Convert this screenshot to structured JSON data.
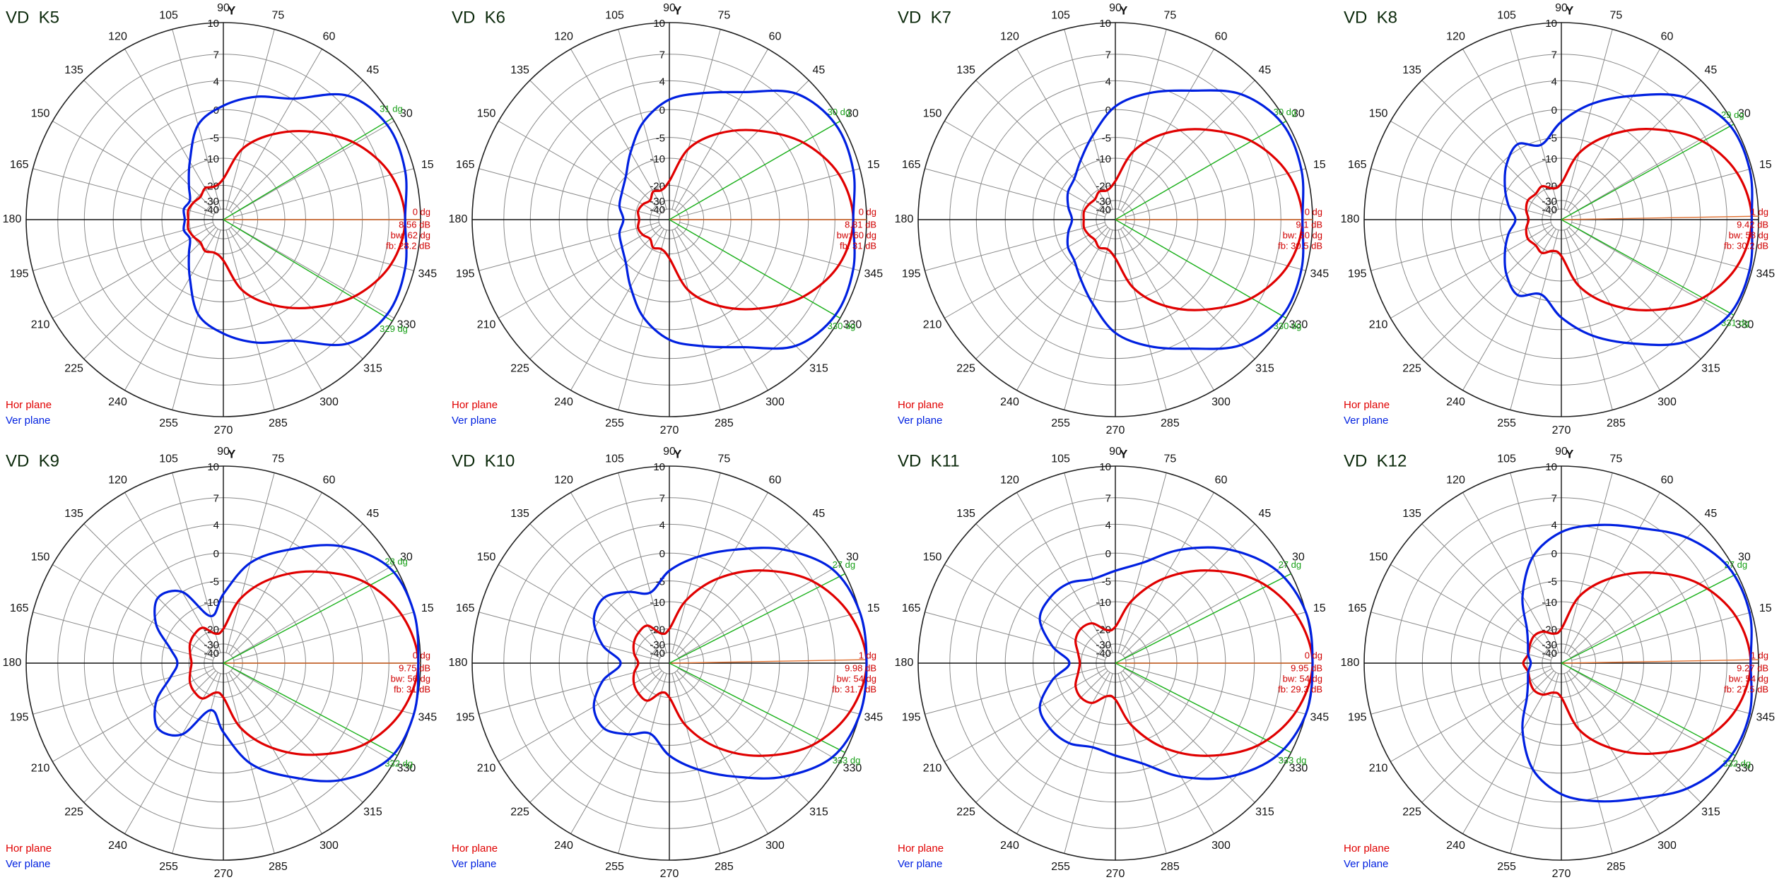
{
  "chart_data": [
    {
      "type": "polar",
      "title": "VD  K5",
      "axis_label": "Y",
      "radial_scale": "arrl",
      "rlim": [
        -40,
        10
      ],
      "rticks": [
        10,
        7,
        4,
        0,
        -5,
        -10,
        -20,
        -30,
        -40
      ],
      "thetaticks": [
        15,
        30,
        45,
        60,
        75,
        90,
        105,
        120,
        135,
        150,
        165,
        180,
        195,
        210,
        225,
        240,
        255,
        270,
        285,
        300,
        315,
        330,
        345
      ],
      "theta": [
        0,
        15,
        30,
        45,
        60,
        75,
        90,
        105,
        120,
        135,
        150,
        165,
        180,
        195,
        210,
        225,
        240,
        255,
        270,
        285,
        300,
        315,
        330,
        345
      ],
      "series": [
        {
          "name": "Hor plane",
          "color": "#e00000",
          "values": [
            8.6,
            7.8,
            5.6,
            2.1,
            -1.9,
            -7,
            -17,
            -20,
            -19,
            -21,
            -20,
            -19,
            -19.6,
            -19,
            -20,
            -21,
            -19,
            -20,
            -17,
            -7,
            -1.9,
            2.1,
            5.6,
            7.8
          ]
        },
        {
          "name": "Ver plane",
          "color": "#0020e0",
          "values": [
            8.6,
            9.2,
            9.3,
            8,
            4.1,
            2.5,
            0.6,
            -2,
            -8.5,
            -14,
            -18,
            -17,
            -18,
            -17,
            -18,
            -14,
            -8.5,
            -2,
            0.6,
            2.5,
            4.1,
            8,
            9.3,
            9.2
          ]
        }
      ],
      "beam_lines": [
        {
          "value": 31,
          "label": "31 dg"
        },
        {
          "value": 329,
          "label": "329 dg"
        }
      ],
      "max_dir": {
        "value": 0,
        "label": "0 dg"
      },
      "info": [
        "8.56 dB",
        "bw: 62 dg",
        "fb: 28.2 dB"
      ]
    },
    {
      "type": "polar",
      "title": "VD  K6",
      "axis_label": "Y",
      "radial_scale": "arrl",
      "rlim": [
        -40,
        10
      ],
      "rticks": [
        10,
        7,
        4,
        0,
        -5,
        -10,
        -20,
        -30,
        -40
      ],
      "thetaticks": [
        15,
        30,
        45,
        60,
        75,
        90,
        105,
        120,
        135,
        150,
        165,
        180,
        195,
        210,
        225,
        240,
        255,
        270,
        285,
        300,
        315,
        330,
        345
      ],
      "theta": [
        0,
        15,
        30,
        45,
        60,
        75,
        90,
        105,
        120,
        135,
        150,
        165,
        180,
        195,
        210,
        225,
        240,
        255,
        270,
        285,
        300,
        315,
        330,
        345
      ],
      "series": [
        {
          "name": "Hor plane",
          "color": "#e00000",
          "values": [
            8.8,
            8,
            5.8,
            2.3,
            -1.7,
            -7,
            -18,
            -22,
            -21,
            -24,
            -22,
            -21,
            -22.2,
            -21,
            -22,
            -24,
            -21,
            -22,
            -18,
            -7,
            -1.7,
            2.3,
            5.8,
            8
          ]
        },
        {
          "name": "Ver plane",
          "color": "#0020e0",
          "values": [
            8.8,
            9.4,
            9.5,
            8.3,
            5,
            3,
            1.5,
            -1.5,
            -6,
            -10,
            -12,
            -13,
            -15,
            -13,
            -12,
            -10,
            -6,
            -1.5,
            1.5,
            3,
            5,
            8.3,
            9.5,
            9.4
          ]
        }
      ],
      "beam_lines": [
        {
          "value": 30,
          "label": "30 dg"
        },
        {
          "value": 330,
          "label": "330 dg"
        }
      ],
      "max_dir": {
        "value": 0,
        "label": "0 dg"
      },
      "info": [
        "8.81 dB",
        "bw: 60 dg",
        "fb: 31 dB"
      ]
    },
    {
      "type": "polar",
      "title": "VD  K7",
      "axis_label": "Y",
      "radial_scale": "arrl",
      "rlim": [
        -40,
        10
      ],
      "rticks": [
        10,
        7,
        4,
        0,
        -5,
        -10,
        -20,
        -30,
        -40
      ],
      "thetaticks": [
        15,
        30,
        45,
        60,
        75,
        90,
        105,
        120,
        135,
        150,
        165,
        180,
        195,
        210,
        225,
        240,
        255,
        270,
        285,
        300,
        315,
        330,
        345
      ],
      "theta": [
        0,
        15,
        30,
        45,
        60,
        75,
        90,
        105,
        120,
        135,
        150,
        165,
        180,
        195,
        210,
        225,
        240,
        255,
        270,
        285,
        300,
        315,
        330,
        345
      ],
      "series": [
        {
          "name": "Hor plane",
          "color": "#e00000",
          "values": [
            9.1,
            8.3,
            6.1,
            2.5,
            -1.7,
            -7.5,
            -18,
            -22,
            -21,
            -23,
            -22,
            -21,
            -21.4,
            -21,
            -22,
            -23,
            -21,
            -22,
            -18,
            -7.5,
            -1.7,
            2.5,
            6.1,
            8.3
          ]
        },
        {
          "name": "Ver plane",
          "color": "#0020e0",
          "values": [
            9.1,
            9.6,
            9.6,
            8.2,
            5.2,
            3,
            0.5,
            -4,
            -8,
            -11,
            -12,
            -14,
            -16,
            -14,
            -12,
            -11,
            -8,
            -4,
            0.5,
            3,
            5.2,
            8.2,
            9.6,
            9.6
          ]
        }
      ],
      "beam_lines": [
        {
          "value": 30,
          "label": "30 dg"
        },
        {
          "value": 330,
          "label": "330 dg"
        }
      ],
      "max_dir": {
        "value": 0,
        "label": "0 dg"
      },
      "info": [
        "9.1 dB",
        "bw: 60 dg",
        "fb: 30.5 dB"
      ]
    },
    {
      "type": "polar",
      "title": "VD  K8",
      "axis_label": "Y",
      "radial_scale": "arrl",
      "rlim": [
        -40,
        10
      ],
      "rticks": [
        10,
        7,
        4,
        0,
        -5,
        -10,
        -20,
        -30,
        -40
      ],
      "thetaticks": [
        15,
        30,
        45,
        60,
        75,
        90,
        105,
        120,
        135,
        150,
        165,
        180,
        195,
        210,
        225,
        240,
        255,
        270,
        285,
        300,
        315,
        330,
        345
      ],
      "theta": [
        0,
        15,
        30,
        45,
        60,
        75,
        90,
        105,
        120,
        135,
        150,
        165,
        180,
        195,
        210,
        225,
        240,
        255,
        270,
        285,
        300,
        315,
        330,
        345
      ],
      "series": [
        {
          "name": "Hor plane",
          "color": "#e00000",
          "values": [
            9.4,
            8.6,
            6.4,
            2.6,
            -2,
            -8,
            -19,
            -21,
            -18,
            -19,
            -18,
            -19,
            -20.8,
            -19,
            -18,
            -19,
            -18,
            -21,
            -19,
            -8,
            -2,
            2.6,
            6.4,
            8.6
          ]
        },
        {
          "name": "Ver plane",
          "color": "#0020e0",
          "values": [
            9.4,
            9.8,
            9.6,
            7.8,
            4.5,
            1.5,
            -2,
            -6,
            -4,
            -6,
            -9,
            -12,
            -15,
            -12,
            -9,
            -6,
            -4,
            -6,
            -2,
            1.5,
            4.5,
            7.8,
            9.6,
            9.8
          ]
        }
      ],
      "beam_lines": [
        {
          "value": 29,
          "label": "29 dg"
        },
        {
          "value": 331,
          "label": "331 dg"
        }
      ],
      "max_dir": {
        "value": 1,
        "label": "1 dg"
      },
      "info": [
        "9.42 dB",
        "bw: 58 dg",
        "fb: 30.2 dB"
      ]
    },
    {
      "type": "polar",
      "title": "VD  K9",
      "axis_label": "Y",
      "radial_scale": "arrl",
      "rlim": [
        -40,
        10
      ],
      "rticks": [
        10,
        7,
        4,
        0,
        -5,
        -10,
        -20,
        -30,
        -40
      ],
      "thetaticks": [
        15,
        30,
        45,
        60,
        75,
        90,
        105,
        120,
        135,
        150,
        165,
        180,
        195,
        210,
        225,
        240,
        255,
        270,
        285,
        300,
        315,
        330,
        345
      ],
      "theta": [
        0,
        15,
        30,
        45,
        60,
        75,
        90,
        105,
        120,
        135,
        150,
        165,
        180,
        195,
        210,
        225,
        240,
        255,
        270,
        285,
        300,
        315,
        330,
        345
      ],
      "series": [
        {
          "name": "Hor plane",
          "color": "#e00000",
          "values": [
            9.8,
            8.9,
            6.7,
            2.8,
            -2,
            -8.5,
            -20,
            -22,
            -17,
            -17,
            -18,
            -20,
            -21.3,
            -20,
            -18,
            -17,
            -17,
            -22,
            -20,
            -8.5,
            -2,
            2.8,
            6.7,
            8.9
          ]
        },
        {
          "name": "Ver plane",
          "color": "#0020e0",
          "values": [
            9.8,
            10,
            9.5,
            7,
            3,
            -1,
            -8,
            -14,
            -5,
            -3,
            -6,
            -12,
            -15,
            -12,
            -6,
            -3,
            -5,
            -14,
            -8,
            -1,
            3,
            7,
            9.5,
            10
          ]
        }
      ],
      "beam_lines": [
        {
          "value": 28,
          "label": "28 dg"
        },
        {
          "value": 332,
          "label": "332 dg"
        }
      ],
      "max_dir": {
        "value": 0,
        "label": "0 dg"
      },
      "info": [
        "9.75 dB",
        "bw: 56 dg",
        "fb: 31 dB"
      ]
    },
    {
      "type": "polar",
      "title": "VD  K10",
      "axis_label": "Y",
      "radial_scale": "arrl",
      "rlim": [
        -40,
        10
      ],
      "rticks": [
        10,
        7,
        4,
        0,
        -5,
        -10,
        -20,
        -30,
        -40
      ],
      "thetaticks": [
        15,
        30,
        45,
        60,
        75,
        90,
        105,
        120,
        135,
        150,
        165,
        180,
        195,
        210,
        225,
        240,
        255,
        270,
        285,
        300,
        315,
        330,
        345
      ],
      "theta": [
        0,
        15,
        30,
        45,
        60,
        75,
        90,
        105,
        120,
        135,
        150,
        165,
        180,
        195,
        210,
        225,
        240,
        255,
        270,
        285,
        300,
        315,
        330,
        345
      ],
      "series": [
        {
          "name": "Hor plane",
          "color": "#e00000",
          "values": [
            10,
            9.1,
            6.9,
            3,
            -2,
            -9,
            -20,
            -22,
            -16,
            -16,
            -17,
            -19,
            -21.7,
            -19,
            -17,
            -16,
            -16,
            -22,
            -20,
            -9,
            -2,
            3,
            6.9,
            9.1
          ]
        },
        {
          "name": "Ver plane",
          "color": "#0020e0",
          "values": [
            10,
            10,
            9.2,
            6.5,
            3,
            0,
            -3,
            -7,
            -5,
            -3,
            -4,
            -8,
            -14,
            -8,
            -4,
            -3,
            -5,
            -7,
            -3,
            0,
            3,
            6.5,
            9.2,
            10
          ]
        }
      ],
      "beam_lines": [
        {
          "value": 27,
          "label": "27 dg"
        },
        {
          "value": 333,
          "label": "333 dg"
        }
      ],
      "max_dir": {
        "value": 1,
        "label": "1 dg"
      },
      "info": [
        "9.98 dB",
        "bw: 54 dg",
        "fb: 31.7 dB"
      ]
    },
    {
      "type": "polar",
      "title": "VD  K11",
      "axis_label": "Y",
      "radial_scale": "arrl",
      "rlim": [
        -40,
        10
      ],
      "rticks": [
        10,
        7,
        4,
        0,
        -5,
        -10,
        -20,
        -30,
        -40
      ],
      "thetaticks": [
        15,
        30,
        45,
        60,
        75,
        90,
        105,
        120,
        135,
        150,
        165,
        180,
        195,
        210,
        225,
        240,
        255,
        270,
        285,
        300,
        315,
        330,
        345
      ],
      "theta": [
        0,
        15,
        30,
        45,
        60,
        75,
        90,
        105,
        120,
        135,
        150,
        165,
        180,
        195,
        210,
        225,
        240,
        255,
        270,
        285,
        300,
        315,
        330,
        345
      ],
      "series": [
        {
          "name": "Hor plane",
          "color": "#e00000",
          "values": [
            10,
            9.1,
            6.9,
            3,
            -2,
            -9,
            -19,
            -20,
            -15,
            -14,
            -15,
            -18,
            -19.4,
            -18,
            -15,
            -14,
            -15,
            -20,
            -19,
            -9,
            -2,
            3,
            6.9,
            9.1
          ]
        },
        {
          "name": "Ver plane",
          "color": "#0020e0",
          "values": [
            10,
            10,
            9,
            6.5,
            3,
            -1,
            -3,
            -4,
            -3,
            -3,
            -4,
            -9,
            -15,
            -9,
            -4,
            -3,
            -3,
            -4,
            -3,
            -1,
            3,
            6.5,
            9,
            10
          ]
        }
      ],
      "beam_lines": [
        {
          "value": 27,
          "label": "27 dg"
        },
        {
          "value": 333,
          "label": "333 dg"
        }
      ],
      "max_dir": {
        "value": 0,
        "label": "0 dg"
      },
      "info": [
        "9.95 dB",
        "bw: 54 dg",
        "fb: 29.3 dB"
      ]
    },
    {
      "type": "polar",
      "title": "VD  K12",
      "axis_label": "Y",
      "radial_scale": "arrl",
      "rlim": [
        -40,
        10
      ],
      "rticks": [
        10,
        7,
        4,
        0,
        -5,
        -10,
        -20,
        -30,
        -40
      ],
      "thetaticks": [
        15,
        30,
        45,
        60,
        75,
        90,
        105,
        120,
        135,
        150,
        165,
        180,
        195,
        210,
        225,
        240,
        255,
        270,
        285,
        300,
        315,
        330,
        345
      ],
      "theta": [
        0,
        15,
        30,
        45,
        60,
        75,
        90,
        105,
        120,
        135,
        150,
        165,
        180,
        195,
        210,
        225,
        240,
        255,
        270,
        285,
        300,
        315,
        330,
        345
      ],
      "series": [
        {
          "name": "Hor plane",
          "color": "#e00000",
          "values": [
            9.3,
            8.5,
            6.3,
            2.6,
            -2,
            -8,
            -20,
            -22,
            -19,
            -18,
            -19,
            -20,
            -18.2,
            -20,
            -19,
            -18,
            -19,
            -22,
            -20,
            -8,
            -2,
            2.6,
            6.3,
            8.5
          ]
        },
        {
          "name": "Ver plane",
          "color": "#0020e0",
          "values": [
            9.3,
            9.8,
            9.6,
            8.2,
            6,
            4.5,
            3,
            0,
            -6,
            -14,
            -18,
            -20,
            -22,
            -20,
            -18,
            -14,
            -6,
            0,
            3,
            4.5,
            6,
            8.2,
            9.6,
            9.8
          ]
        }
      ],
      "beam_lines": [
        {
          "value": 27,
          "label": "27 dg"
        },
        {
          "value": 332,
          "label": "332 dg"
        }
      ],
      "max_dir": {
        "value": 1,
        "label": "1 dg"
      },
      "info": [
        "9.27 dB",
        "bw: 54 dg",
        "fb: 27.5 dB"
      ]
    }
  ]
}
